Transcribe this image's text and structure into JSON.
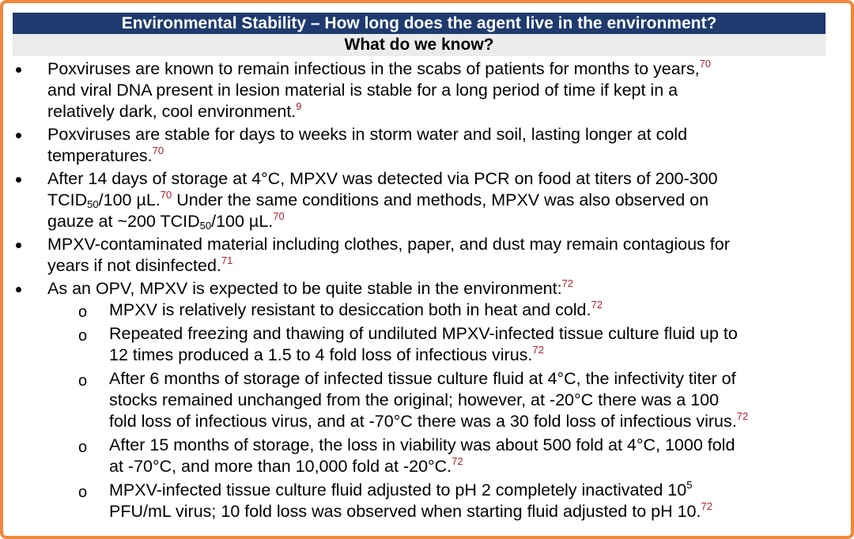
{
  "header": {
    "title": "Environmental Stability – How long does the agent live in the environment?",
    "subtitle": "What do we know?"
  },
  "bullets": [
    {
      "lines": [
        {
          "t1": "Poxviruses are known to remain infectious in the scabs of patients for months to years,",
          "s1": "70"
        },
        {
          "t1": "and viral DNA present in lesion material is stable for a long period of time if kept in a"
        },
        {
          "t1": "relatively dark, cool environment.",
          "s1": "9"
        }
      ]
    },
    {
      "lines": [
        {
          "t1": "Poxviruses are stable for days to weeks in storm water and soil, lasting longer at cold"
        },
        {
          "t1": "temperatures.",
          "s1": "70"
        }
      ]
    },
    {
      "lines": [
        {
          "t1": "After 14 days of storage at 4°C, MPXV was detected via PCR on food at titers of 200-300"
        },
        {
          "t1": "TCID",
          "sub1": "50",
          "t2": "/100 µL.",
          "s1": "70",
          "t3": " Under the same conditions and methods, MPXV was also observed on"
        },
        {
          "t1": "gauze at ~200 TCID",
          "sub1": "50",
          "t2": "/100 µL.",
          "s1": "70"
        }
      ]
    },
    {
      "lines": [
        {
          "t1": "MPXV-contaminated material including clothes, paper, and dust may remain contagious for"
        },
        {
          "t1": "years if not disinfected.",
          "s1": "71"
        }
      ]
    },
    {
      "lines": [
        {
          "t1": "As an OPV, MPXV is expected to be quite stable in the environment:",
          "s1": "72"
        }
      ]
    }
  ],
  "subbullets": [
    {
      "lines": [
        {
          "t1": "MPXV is relatively resistant to desiccation both in heat and cold.",
          "s1": "72"
        }
      ]
    },
    {
      "lines": [
        {
          "t1": "Repeated freezing and thawing of undiluted MPXV-infected tissue culture fluid up to"
        },
        {
          "t1": "12 times produced a 1.5 to 4 fold loss of infectious virus.",
          "s1": "72"
        }
      ]
    },
    {
      "lines": [
        {
          "t1": "After 6 months of storage of infected tissue culture fluid at 4°C, the infectivity titer of"
        },
        {
          "t1": "stocks remained unchanged from the original; however, at -20°C there was a 100"
        },
        {
          "t1": "fold loss of infectious virus, and at -70°C there was a 30 fold loss of infectious virus.",
          "s1": "72"
        }
      ]
    },
    {
      "lines": [
        {
          "t1": "After 15 months of storage, the loss in viability was about 500 fold at 4°C, 1000 fold"
        },
        {
          "t1": "at -70°C, and more than 10,000 fold at -20°C.",
          "s1": "72"
        }
      ]
    },
    {
      "lines": [
        {
          "t1": "MPXV-infected tissue culture fluid adjusted to pH 2 completely inactivated 10",
          "sup_exp": "5"
        },
        {
          "t1": "PFU/mL virus; 10 fold loss was observed when starting fluid adjusted to pH 10.",
          "s1": "72"
        }
      ]
    }
  ],
  "colors": {
    "border": "#f0883b",
    "title_bg": "#1f3a6e",
    "subtitle_bg": "#ececec",
    "citation": "#b0202a"
  }
}
